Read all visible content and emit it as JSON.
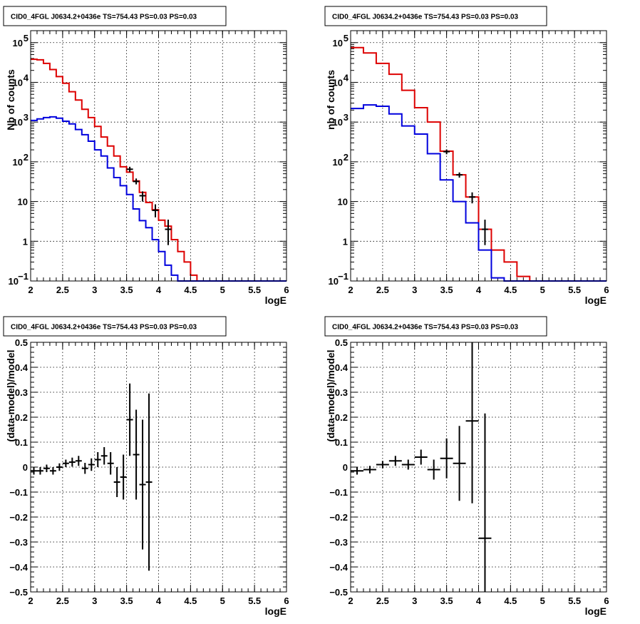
{
  "colors": {
    "data": "#000000",
    "blue": "#0000dd",
    "red": "#dd0000"
  },
  "chart_data": [
    {
      "type": "line",
      "title": "CID0_4FGL J0634.2+0436e TS=754.43 PS=0.03 PS=0.03",
      "xlabel": "logE",
      "ylabel": "Nb of counts",
      "xlim": [
        2,
        6
      ],
      "ylim": [
        0.1,
        200000
      ],
      "yscale": "log",
      "grid": true,
      "xticks": [
        "2",
        "2.5",
        "3",
        "3.5",
        "4",
        "4.5",
        "5",
        "5.5",
        "6"
      ],
      "yticks": [
        {
          "v": 0.1,
          "t": "10",
          "e": "−1"
        },
        {
          "v": 1,
          "t": "1"
        },
        {
          "v": 10,
          "t": "10"
        },
        {
          "v": 100,
          "t": "10",
          "e": "2"
        },
        {
          "v": 1000,
          "t": "10",
          "e": "3"
        },
        {
          "v": 10000,
          "t": "10",
          "e": "4"
        },
        {
          "v": 100000,
          "t": "10",
          "e": "5"
        }
      ],
      "bin_edges": [
        2.0,
        2.1,
        2.2,
        2.3,
        2.4,
        2.5,
        2.6,
        2.7,
        2.8,
        2.9,
        3.0,
        3.1,
        3.2,
        3.3,
        3.4,
        3.5,
        3.6,
        3.7,
        3.8,
        3.9,
        4.0,
        4.1,
        4.2,
        4.3,
        4.4,
        4.5,
        4.6,
        4.7,
        4.8,
        4.9,
        5.0,
        5.1,
        5.2,
        5.3,
        5.4,
        5.5,
        5.6,
        5.7,
        5.8,
        5.9,
        6.0
      ],
      "series": [
        {
          "color": "red",
          "values": [
            38000,
            37000,
            30000,
            21000,
            14000,
            9500,
            5800,
            3600,
            2100,
            1300,
            780,
            420,
            250,
            140,
            75,
            55,
            33,
            17,
            9.5,
            6.2,
            3.4,
            2.4,
            1.1,
            0.55,
            0.3,
            0.14,
            0.1,
            0.1,
            0.1,
            0.1,
            0.1,
            0.1,
            0.1,
            0.1,
            0.1,
            0.1,
            0.1,
            0.1,
            0.1,
            0.1
          ]
        },
        {
          "color": "blue",
          "values": [
            1100,
            1200,
            1300,
            1350,
            1250,
            1050,
            900,
            650,
            480,
            330,
            200,
            140,
            70,
            40,
            25,
            15,
            6.5,
            3.3,
            2.2,
            1.1,
            0.55,
            0.25,
            0.14,
            0.1,
            0.1,
            0.1,
            0.1,
            0.1,
            0.1,
            0.1,
            0.1,
            0.1,
            0.1,
            0.1,
            0.1,
            0.1,
            0.1,
            0.1,
            0.1,
            0.1
          ]
        }
      ],
      "points": [
        {
          "x": 3.55,
          "y": 65,
          "lo": 55,
          "hi": 75
        },
        {
          "x": 3.65,
          "y": 32,
          "lo": 27,
          "hi": 38
        },
        {
          "x": 3.75,
          "y": 14,
          "lo": 10,
          "hi": 18
        },
        {
          "x": 3.95,
          "y": 6,
          "lo": 4,
          "hi": 8.5
        },
        {
          "x": 4.15,
          "y": 2,
          "lo": 0.8,
          "hi": 3.5
        }
      ]
    },
    {
      "type": "line",
      "title": "CID0_4FGL J0634.2+0436e TS=754.43 PS=0.03 PS=0.03",
      "xlabel": "logE",
      "ylabel": "nb of counts",
      "xlim": [
        2,
        6
      ],
      "ylim": [
        0.1,
        200000
      ],
      "yscale": "log",
      "grid": true,
      "xticks": [
        "2",
        "2.5",
        "3",
        "3.5",
        "4",
        "4.5",
        "5",
        "5.5",
        "6"
      ],
      "yticks": [
        {
          "v": 0.1,
          "t": "10",
          "e": "−1"
        },
        {
          "v": 1,
          "t": "1"
        },
        {
          "v": 10,
          "t": "10"
        },
        {
          "v": 100,
          "t": "10",
          "e": "2"
        },
        {
          "v": 1000,
          "t": "10",
          "e": "3"
        },
        {
          "v": 10000,
          "t": "10",
          "e": "4"
        },
        {
          "v": 100000,
          "t": "10",
          "e": "5"
        }
      ],
      "bin_edges": [
        2.0,
        2.2,
        2.4,
        2.6,
        2.8,
        3.0,
        3.2,
        3.4,
        3.6,
        3.8,
        4.0,
        4.2,
        4.4,
        4.6,
        4.8,
        5.0,
        5.2,
        5.4,
        5.6,
        5.8,
        6.0
      ],
      "series": [
        {
          "color": "red",
          "values": [
            75000,
            55000,
            30000,
            16000,
            6300,
            2300,
            1000,
            185,
            47,
            13,
            2.0,
            0.6,
            0.3,
            0.13,
            0.1,
            0.1,
            0.1,
            0.1,
            0.1,
            0.1
          ]
        },
        {
          "color": "blue",
          "values": [
            2200,
            2700,
            2500,
            1600,
            800,
            500,
            160,
            35,
            10,
            2.9,
            0.6,
            0.12,
            0.1,
            0.1,
            0.1,
            0.1,
            0.1,
            0.1,
            0.1,
            0.1
          ]
        }
      ],
      "points": [
        {
          "x": 3.5,
          "y": 180,
          "lo": 155,
          "hi": 205
        },
        {
          "x": 3.7,
          "y": 47,
          "lo": 40,
          "hi": 54
        },
        {
          "x": 3.9,
          "y": 13,
          "lo": 9,
          "hi": 17
        },
        {
          "x": 4.1,
          "y": 2,
          "lo": 0.8,
          "hi": 3.5
        }
      ]
    },
    {
      "type": "scatter",
      "title": "CID0_4FGL J0634.2+0436e TS=754.43 PS=0.03 PS=0.03",
      "xlabel": "logE",
      "ylabel": "(data-model)/model",
      "xlim": [
        2,
        6
      ],
      "ylim": [
        -0.5,
        0.5
      ],
      "yscale": "linear",
      "grid": true,
      "xticks": [
        "2",
        "2.5",
        "3",
        "3.5",
        "4",
        "4.5",
        "5",
        "5.5",
        "6"
      ],
      "yticks": [
        {
          "v": -0.5,
          "t": "−0.5"
        },
        {
          "v": -0.4,
          "t": "−0.4"
        },
        {
          "v": -0.3,
          "t": "−0.3"
        },
        {
          "v": -0.2,
          "t": "−0.2"
        },
        {
          "v": -0.1,
          "t": "−0.1"
        },
        {
          "v": 0,
          "t": "0"
        },
        {
          "v": 0.1,
          "t": "0.1"
        },
        {
          "v": 0.2,
          "t": "0.2"
        },
        {
          "v": 0.3,
          "t": "0.3"
        },
        {
          "v": 0.4,
          "t": "0.4"
        },
        {
          "v": 0.5,
          "t": "0.5"
        }
      ],
      "halfwidth": 0.05,
      "points": [
        {
          "x": 2.05,
          "y": -0.015,
          "err": 0.015
        },
        {
          "x": 2.15,
          "y": -0.015,
          "err": 0.015
        },
        {
          "x": 2.25,
          "y": -0.005,
          "err": 0.015
        },
        {
          "x": 2.35,
          "y": -0.015,
          "err": 0.015
        },
        {
          "x": 2.45,
          "y": 0.0,
          "err": 0.015
        },
        {
          "x": 2.55,
          "y": 0.015,
          "err": 0.015
        },
        {
          "x": 2.65,
          "y": 0.02,
          "err": 0.018
        },
        {
          "x": 2.75,
          "y": 0.025,
          "err": 0.02
        },
        {
          "x": 2.85,
          "y": -0.005,
          "err": 0.022
        },
        {
          "x": 2.95,
          "y": 0.01,
          "err": 0.025
        },
        {
          "x": 3.05,
          "y": 0.03,
          "err": 0.03
        },
        {
          "x": 3.15,
          "y": 0.045,
          "err": 0.035
        },
        {
          "x": 3.25,
          "y": 0.015,
          "err": 0.045
        },
        {
          "x": 3.35,
          "y": -0.06,
          "err": 0.06
        },
        {
          "x": 3.45,
          "y": -0.04,
          "err": 0.09
        },
        {
          "x": 3.55,
          "y": 0.19,
          "err": 0.145
        },
        {
          "x": 3.65,
          "y": 0.05,
          "err": 0.18
        },
        {
          "x": 3.75,
          "y": -0.07,
          "err": 0.26
        },
        {
          "x": 3.85,
          "y": -0.06,
          "err": 0.355
        }
      ]
    },
    {
      "type": "scatter",
      "title": "CID0_4FGL J0634.2+0436e TS=754.43 PS=0.03 PS=0.03",
      "xlabel": "logE",
      "ylabel": "(data-model)/model",
      "xlim": [
        2,
        6
      ],
      "ylim": [
        -0.5,
        0.5
      ],
      "yscale": "linear",
      "grid": true,
      "xticks": [
        "2",
        "2.5",
        "3",
        "3.5",
        "4",
        "4.5",
        "5",
        "5.5",
        "6"
      ],
      "yticks": [
        {
          "v": -0.5,
          "t": "−0.5"
        },
        {
          "v": -0.4,
          "t": "−0.4"
        },
        {
          "v": -0.3,
          "t": "−0.3"
        },
        {
          "v": -0.2,
          "t": "−0.2"
        },
        {
          "v": -0.1,
          "t": "−0.1"
        },
        {
          "v": 0,
          "t": "0"
        },
        {
          "v": 0.1,
          "t": "0.1"
        },
        {
          "v": 0.2,
          "t": "0.2"
        },
        {
          "v": 0.3,
          "t": "0.3"
        },
        {
          "v": 0.4,
          "t": "0.4"
        },
        {
          "v": 0.5,
          "t": "0.5"
        }
      ],
      "halfwidth": 0.1,
      "points": [
        {
          "x": 2.1,
          "y": -0.015,
          "err": 0.015
        },
        {
          "x": 2.3,
          "y": -0.01,
          "err": 0.015
        },
        {
          "x": 2.5,
          "y": 0.01,
          "err": 0.015
        },
        {
          "x": 2.7,
          "y": 0.025,
          "err": 0.02
        },
        {
          "x": 2.9,
          "y": 0.01,
          "err": 0.02
        },
        {
          "x": 3.1,
          "y": 0.04,
          "err": 0.03
        },
        {
          "x": 3.3,
          "y": -0.01,
          "err": 0.04
        },
        {
          "x": 3.5,
          "y": 0.035,
          "err": 0.08
        },
        {
          "x": 3.7,
          "y": 0.015,
          "err": 0.15
        },
        {
          "x": 3.9,
          "y": 0.185,
          "err": 0.33
        },
        {
          "x": 4.1,
          "y": -0.285,
          "err": 0.5
        }
      ]
    }
  ]
}
